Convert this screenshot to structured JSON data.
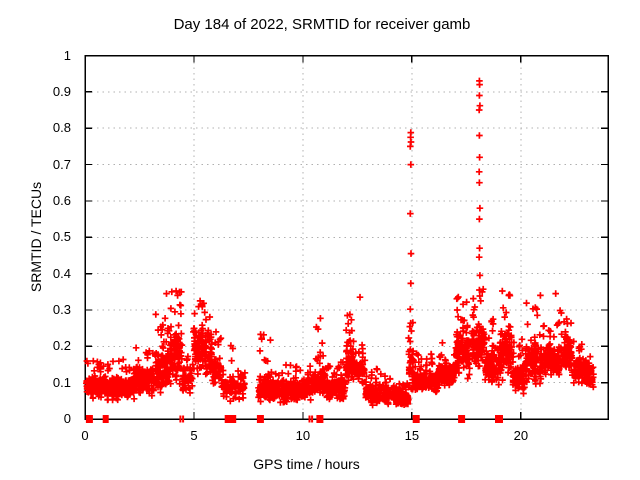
{
  "chart_data": {
    "type": "scatter",
    "title": "Day 184 of 2022, SRMTID for receiver gamb",
    "xlabel": "GPS time / hours",
    "ylabel": "SRMTID / TECUs",
    "xlim": [
      0,
      24
    ],
    "ylim": [
      0,
      1
    ],
    "grid": true,
    "legend": "none",
    "marker": "plus",
    "marker_color": "#ff0000",
    "grid_color": "#b0b0b0",
    "axis_color": "#000000",
    "render_seed": 184,
    "xticks": [
      {
        "v": 0,
        "label": "0"
      },
      {
        "v": 5,
        "label": "5"
      },
      {
        "v": 10,
        "label": "10"
      },
      {
        "v": 15,
        "label": "15"
      },
      {
        "v": 20,
        "label": "20"
      }
    ],
    "yticks": [
      {
        "v": 0,
        "label": "0"
      },
      {
        "v": 0.1,
        "label": "0.1"
      },
      {
        "v": 0.2,
        "label": "0.2"
      },
      {
        "v": 0.3,
        "label": "0.3"
      },
      {
        "v": 0.4,
        "label": "0.4"
      },
      {
        "v": 0.5,
        "label": "0.5"
      },
      {
        "v": 0.6,
        "label": "0.6"
      },
      {
        "v": 0.7,
        "label": "0.7"
      },
      {
        "v": 0.8,
        "label": "0.8"
      },
      {
        "v": 0.9,
        "label": "0.9"
      },
      {
        "v": 1,
        "label": "1"
      }
    ],
    "x_grid_at": [
      5,
      10,
      15,
      20
    ],
    "y_grid_at": [
      0.1,
      0.2,
      0.3,
      0.4,
      0.5,
      0.6,
      0.7,
      0.8,
      0.9
    ],
    "baseline_segments": [
      [
        0.05,
        1.0,
        150,
        0.05,
        0.13,
        0.16
      ],
      [
        1.0,
        2.2,
        170,
        0.04,
        0.13,
        0.17
      ],
      [
        2.2,
        3.2,
        150,
        0.05,
        0.16,
        0.22
      ],
      [
        3.2,
        3.9,
        120,
        0.06,
        0.21,
        0.3
      ],
      [
        3.9,
        4.45,
        100,
        0.08,
        0.27,
        0.35
      ],
      [
        4.45,
        4.95,
        60,
        0.05,
        0.16,
        0.2
      ],
      [
        4.95,
        5.45,
        80,
        0.1,
        0.29,
        0.335
      ],
      [
        5.45,
        5.85,
        55,
        0.1,
        0.27,
        0.3
      ],
      [
        5.85,
        6.25,
        50,
        0.08,
        0.19,
        0.27
      ],
      [
        6.25,
        6.55,
        25,
        0.05,
        0.12,
        0.14
      ],
      [
        6.6,
        7.35,
        70,
        0.04,
        0.15,
        0.21
      ],
      [
        7.95,
        8.55,
        85,
        0.03,
        0.14,
        0.25
      ],
      [
        8.55,
        10.45,
        270,
        0.04,
        0.12,
        0.16
      ],
      [
        10.45,
        11.05,
        80,
        0.05,
        0.16,
        0.28
      ],
      [
        11.05,
        11.95,
        130,
        0.04,
        0.13,
        0.17
      ],
      [
        11.95,
        12.35,
        65,
        0.07,
        0.24,
        0.29
      ],
      [
        12.35,
        12.85,
        70,
        0.09,
        0.18,
        0.22
      ],
      [
        12.85,
        14.25,
        190,
        0.035,
        0.11,
        0.14
      ],
      [
        14.25,
        14.85,
        90,
        0.03,
        0.08,
        0.1
      ],
      [
        14.85,
        15.1,
        45,
        0.05,
        0.24,
        0.3
      ],
      [
        15.1,
        16.2,
        150,
        0.06,
        0.14,
        0.18
      ],
      [
        16.2,
        17.0,
        120,
        0.08,
        0.17,
        0.22
      ],
      [
        17.0,
        17.65,
        120,
        0.1,
        0.27,
        0.35
      ],
      [
        17.75,
        18.35,
        95,
        0.12,
        0.3,
        0.36
      ],
      [
        18.35,
        19.05,
        100,
        0.08,
        0.22,
        0.28
      ],
      [
        19.05,
        19.6,
        95,
        0.1,
        0.28,
        0.35
      ],
      [
        19.6,
        20.2,
        90,
        0.05,
        0.17,
        0.22
      ],
      [
        20.2,
        21.0,
        115,
        0.08,
        0.24,
        0.33
      ],
      [
        21.0,
        21.8,
        115,
        0.1,
        0.22,
        0.28
      ],
      [
        21.8,
        22.4,
        85,
        0.1,
        0.26,
        0.33
      ],
      [
        22.4,
        23.1,
        80,
        0.08,
        0.19,
        0.24
      ],
      [
        23.1,
        23.35,
        25,
        0.08,
        0.16,
        0.18
      ]
    ],
    "spike_points": [
      [
        3.74,
        0.345
      ],
      [
        4.18,
        0.352
      ],
      [
        4.25,
        0.34
      ],
      [
        5.28,
        0.325
      ],
      [
        10.8,
        0.277
      ],
      [
        12.62,
        0.335
      ],
      [
        14.93,
        0.302
      ],
      [
        14.95,
        0.373
      ],
      [
        14.96,
        0.455
      ],
      [
        14.93,
        0.565
      ],
      [
        14.95,
        0.7
      ],
      [
        14.93,
        0.75
      ],
      [
        14.96,
        0.762
      ],
      [
        14.94,
        0.775
      ],
      [
        14.95,
        0.788
      ],
      [
        18.1,
        0.355
      ],
      [
        18.12,
        0.395
      ],
      [
        18.09,
        0.445
      ],
      [
        18.11,
        0.47
      ],
      [
        18.1,
        0.55
      ],
      [
        18.12,
        0.58
      ],
      [
        18.1,
        0.65
      ],
      [
        18.09,
        0.68
      ],
      [
        18.11,
        0.72
      ],
      [
        18.1,
        0.78
      ],
      [
        18.09,
        0.85
      ],
      [
        18.12,
        0.862
      ],
      [
        18.1,
        0.89
      ],
      [
        18.11,
        0.92
      ],
      [
        18.1,
        0.93
      ],
      [
        19.15,
        0.352
      ],
      [
        19.45,
        0.34
      ],
      [
        20.9,
        0.34
      ],
      [
        21.6,
        0.345
      ]
    ],
    "zero_markers": [
      [
        0.2,
        7
      ],
      [
        0.95,
        6
      ],
      [
        4.38,
        2
      ],
      [
        4.5,
        2
      ],
      [
        6.55,
        6
      ],
      [
        6.78,
        7
      ],
      [
        8.05,
        7
      ],
      [
        10.3,
        2
      ],
      [
        10.42,
        2
      ],
      [
        10.78,
        7
      ],
      [
        15.2,
        7
      ],
      [
        17.28,
        7
      ],
      [
        19.0,
        8
      ]
    ]
  }
}
